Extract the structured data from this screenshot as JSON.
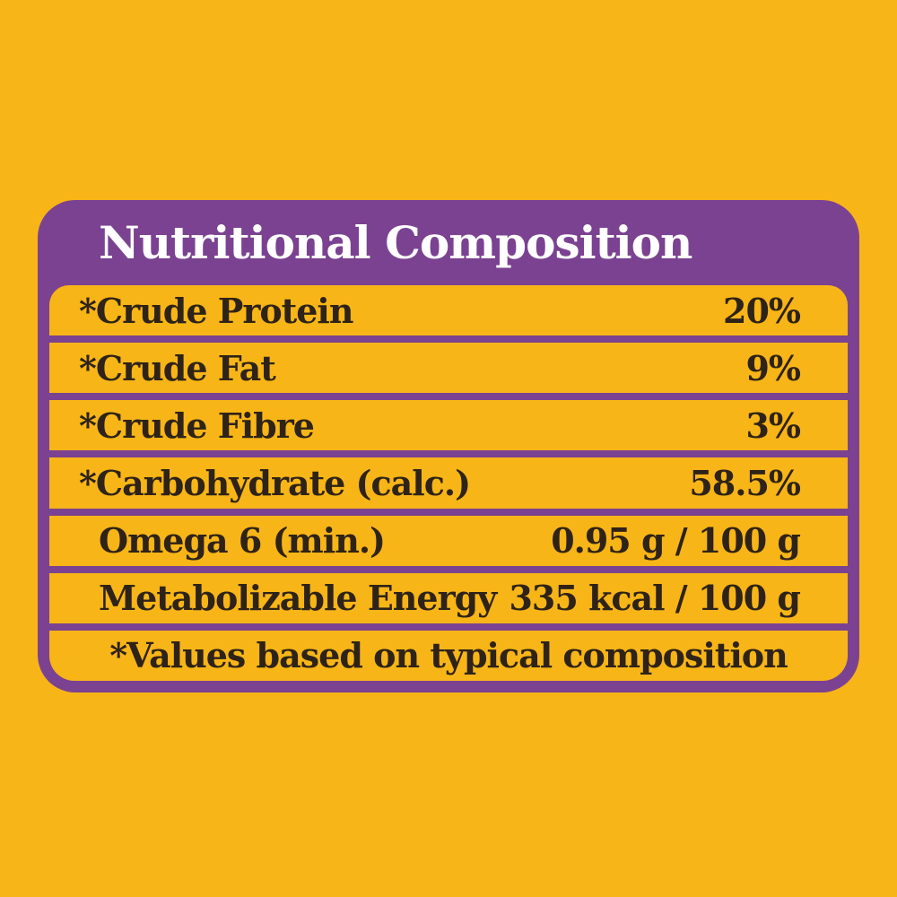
{
  "colors": {
    "background_yellow": "#F8B517",
    "panel_purple": "#7B4291",
    "row_yellow": "#F8B517",
    "text_dark": "#2E2318",
    "header_text": "#FFFFFF"
  },
  "panel": {
    "title": "Nutritional Composition",
    "rows": [
      {
        "label": "*Crude Protein",
        "value": "20%"
      },
      {
        "label": "*Crude Fat",
        "value": "9%"
      },
      {
        "label": "*Crude Fibre",
        "value": "3%"
      },
      {
        "label": "*Carbohydrate (calc.)",
        "value": "58.5%"
      },
      {
        "label": "Omega 6 (min.)",
        "value": "0.95 g / 100 g"
      },
      {
        "label": "Metabolizable Energy",
        "value": "335 kcal / 100 g"
      }
    ],
    "footnote": "*Values based on typical composition"
  }
}
